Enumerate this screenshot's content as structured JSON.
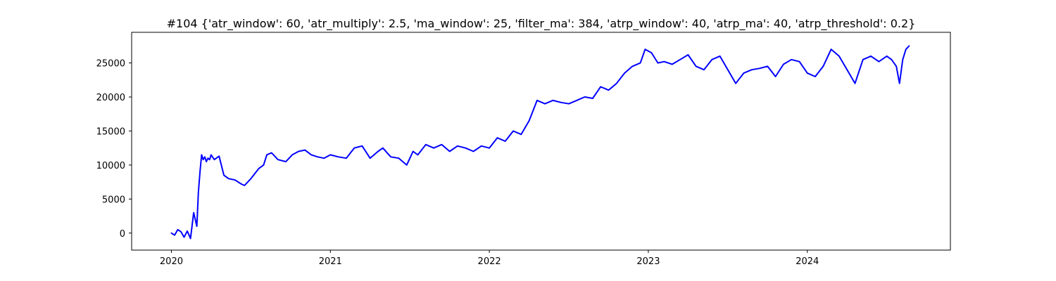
{
  "chart_data": {
    "type": "line",
    "title": "#104 {'atr_window': 60, 'atr_multiply': 2.5, 'ma_window': 25, 'filter_ma': 384, 'atrp_window': 40, 'atrp_ma': 40, 'atrp_threshold': 0.2}",
    "xlabel": "",
    "ylabel": "",
    "x_tick_labels": [
      "2020",
      "2021",
      "2022",
      "2023",
      "2024"
    ],
    "x_ticks": [
      2020.0,
      2021.0,
      2022.0,
      2023.0,
      2024.0
    ],
    "y_ticks": [
      0,
      5000,
      10000,
      15000,
      20000,
      25000
    ],
    "xlim": [
      2019.75,
      2024.9
    ],
    "ylim": [
      -2500,
      29500
    ],
    "grid": false,
    "series": [
      {
        "color": "#0000ff",
        "x": [
          2020.0,
          2020.02,
          2020.04,
          2020.06,
          2020.08,
          2020.1,
          2020.12,
          2020.14,
          2020.16,
          2020.17,
          2020.18,
          2020.19,
          2020.2,
          2020.21,
          2020.22,
          2020.23,
          2020.24,
          2020.25,
          2020.27,
          2020.3,
          2020.33,
          2020.36,
          2020.4,
          2020.44,
          2020.46,
          2020.5,
          2020.55,
          2020.58,
          2020.6,
          2020.63,
          2020.67,
          2020.72,
          2020.76,
          2020.8,
          2020.84,
          2020.88,
          2020.92,
          2020.96,
          2021.0,
          2021.05,
          2021.1,
          2021.15,
          2021.2,
          2021.25,
          2021.3,
          2021.33,
          2021.38,
          2021.43,
          2021.48,
          2021.52,
          2021.55,
          2021.6,
          2021.65,
          2021.7,
          2021.75,
          2021.8,
          2021.85,
          2021.9,
          2021.95,
          2022.0,
          2022.05,
          2022.1,
          2022.15,
          2022.2,
          2022.25,
          2022.3,
          2022.35,
          2022.4,
          2022.45,
          2022.5,
          2022.55,
          2022.6,
          2022.65,
          2022.7,
          2022.75,
          2022.8,
          2022.85,
          2022.9,
          2022.95,
          2022.98,
          2023.02,
          2023.06,
          2023.1,
          2023.15,
          2023.2,
          2023.25,
          2023.3,
          2023.35,
          2023.4,
          2023.45,
          2023.5,
          2023.55,
          2023.6,
          2023.65,
          2023.7,
          2023.75,
          2023.8,
          2023.85,
          2023.9,
          2023.95,
          2024.0,
          2024.05,
          2024.1,
          2024.15,
          2024.2,
          2024.25,
          2024.3,
          2024.35,
          2024.4,
          2024.45,
          2024.5,
          2024.53,
          2024.56,
          2024.58,
          2024.6,
          2024.62,
          2024.64
        ],
        "values": [
          0,
          -300,
          500,
          200,
          -600,
          300,
          -800,
          3000,
          1000,
          6000,
          9000,
          11500,
          10800,
          11200,
          10500,
          11000,
          10800,
          11500,
          10800,
          11300,
          8500,
          8000,
          7800,
          7200,
          7000,
          8000,
          9500,
          10000,
          11500,
          11800,
          10800,
          10500,
          11500,
          12000,
          12200,
          11500,
          11200,
          11000,
          11500,
          11200,
          11000,
          12500,
          12800,
          11000,
          12000,
          12500,
          11200,
          11000,
          10000,
          12000,
          11500,
          13000,
          12500,
          13000,
          12000,
          12800,
          12500,
          12000,
          12800,
          12500,
          14000,
          13500,
          15000,
          14500,
          16500,
          19500,
          19000,
          19500,
          19200,
          19000,
          19500,
          20000,
          19800,
          21500,
          21000,
          22000,
          23500,
          24500,
          25000,
          27000,
          26500,
          25000,
          25200,
          24800,
          25500,
          26200,
          24500,
          24000,
          25500,
          26000,
          24000,
          22000,
          23500,
          24000,
          24200,
          24500,
          23000,
          24800,
          25500,
          25200,
          23500,
          23000,
          24500,
          27000,
          26000,
          24000,
          22000,
          25500,
          26000,
          25200,
          26000,
          25500,
          24500,
          22000,
          25500,
          27000,
          27500
        ]
      }
    ]
  }
}
